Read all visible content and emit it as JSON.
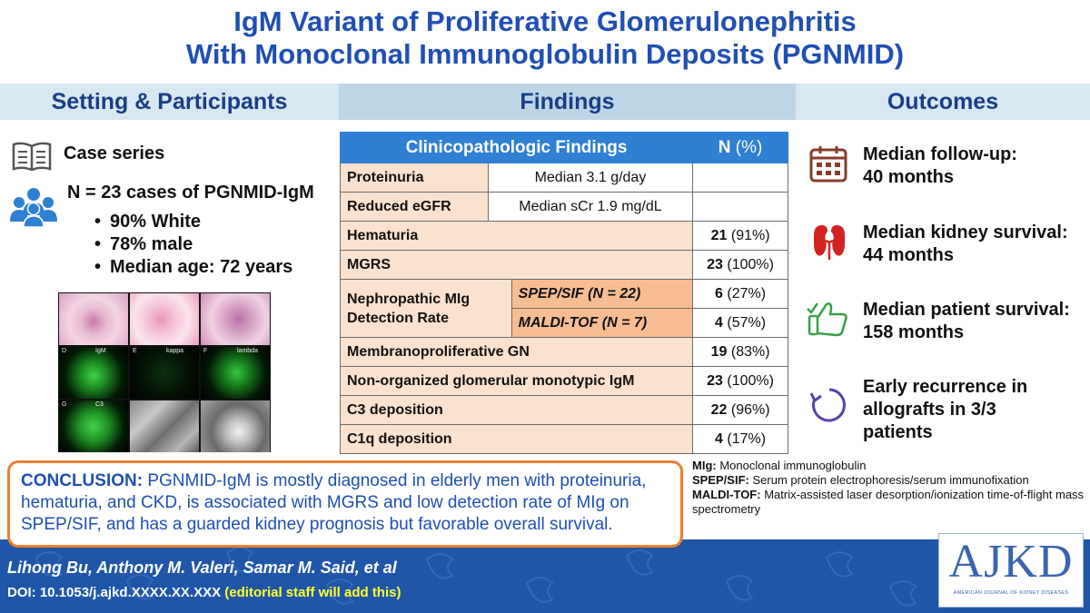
{
  "title": {
    "line1": "IgM Variant of Proliferative Glomerulonephritis",
    "line2": "With Monoclonal Immunoglobulin Deposits (PGNMID)"
  },
  "headers": {
    "setting": "Setting & Participants",
    "findings": "Findings",
    "outcomes": "Outcomes"
  },
  "setting": {
    "case_series": "Case series",
    "n_cases": "N = 23 cases of PGNMID-IgM",
    "bullets": [
      "90% White",
      "78% male",
      "Median age: 72 years"
    ],
    "micro_labels": [
      "D",
      "IgM",
      "E",
      "kappa",
      "F",
      "lambda",
      "G",
      "C3"
    ]
  },
  "table": {
    "head_label": "Clinicopathologic Findings",
    "head_n": "N",
    "head_pct": "(%)",
    "rows": [
      {
        "label": "Proteinuria",
        "detail": "Median 3.1 g/day"
      },
      {
        "label": "Reduced eGFR",
        "detail": "Median sCr 1.9 mg/dL"
      },
      {
        "label": "Hematuria",
        "n": "21",
        "pct": "(91%)"
      },
      {
        "label": "MGRS",
        "n": "23",
        "pct": "(100%)"
      },
      {
        "label": "Membranoproliferative GN",
        "n": "19",
        "pct": "(83%)"
      },
      {
        "label": "Non-organized glomerular monotypic IgM",
        "n": "23",
        "pct": "(100%)"
      },
      {
        "label": "C3 deposition",
        "n": "22",
        "pct": "(96%)"
      },
      {
        "label": "C1q deposition",
        "n": "4",
        "pct": "(17%)"
      }
    ],
    "detection": {
      "label_line1": "Nephropathic MIg",
      "label_line2": "Detection Rate",
      "sub": [
        {
          "method": "SPEP/SIF (N = 22)",
          "n": "6",
          "pct": "(27%)"
        },
        {
          "method": "MALDI-TOF (N = 7)",
          "n": "4",
          "pct": "(57%)"
        }
      ]
    }
  },
  "outcomes": [
    {
      "icon": "calendar-icon",
      "line1": "Median follow-up:",
      "line2": "40 months"
    },
    {
      "icon": "kidney-icon",
      "line1": "Median kidney survival:",
      "line2": "44 months"
    },
    {
      "icon": "thumbs-up-icon",
      "line1": "Median patient survival:",
      "line2": "158 months"
    },
    {
      "icon": "recurrence-cycle-icon",
      "line1": "Early recurrence in",
      "line2": "allografts in 3/3",
      "line3": "patients"
    }
  ],
  "conclusion": {
    "label": "CONCLUSION:",
    "text": "PGNMID-IgM is mostly diagnosed in elderly men with proteinuria, hematuria, and CKD, is associated with MGRS and low detection rate of MIg on SPEP/SIF, and has a guarded kidney prognosis but favorable overall survival."
  },
  "abbreviations": [
    {
      "abbr": "MIg:",
      "def": "Monoclonal immunoglobulin"
    },
    {
      "abbr": "SPEP/SIF:",
      "def": "Serum protein electrophoresis/serum immunofixation"
    },
    {
      "abbr": "MALDI-TOF:",
      "def": "Matrix-assisted laser desorption/ionization time-of-flight mass spectrometry"
    }
  ],
  "footer": {
    "authors": "Lihong Bu, Anthony M. Valeri, Samar M. Said, et al",
    "doi": "DOI: 10.1053/j.ajkd.XXXX.XX.XXX",
    "doi_note": "(editorial staff will add this)"
  },
  "logo": {
    "big": "AJKD",
    "small": "AMERICAN JOURNAL OF KIDNEY DISEASES"
  },
  "colors": {
    "title_blue": "#1f4fb4",
    "header_band": "#d7e8f3",
    "table_head": "#2f7fd3",
    "peach": "#fbe2cf",
    "orange": "#ee7d31",
    "footer_blue": "#1f56a8"
  }
}
